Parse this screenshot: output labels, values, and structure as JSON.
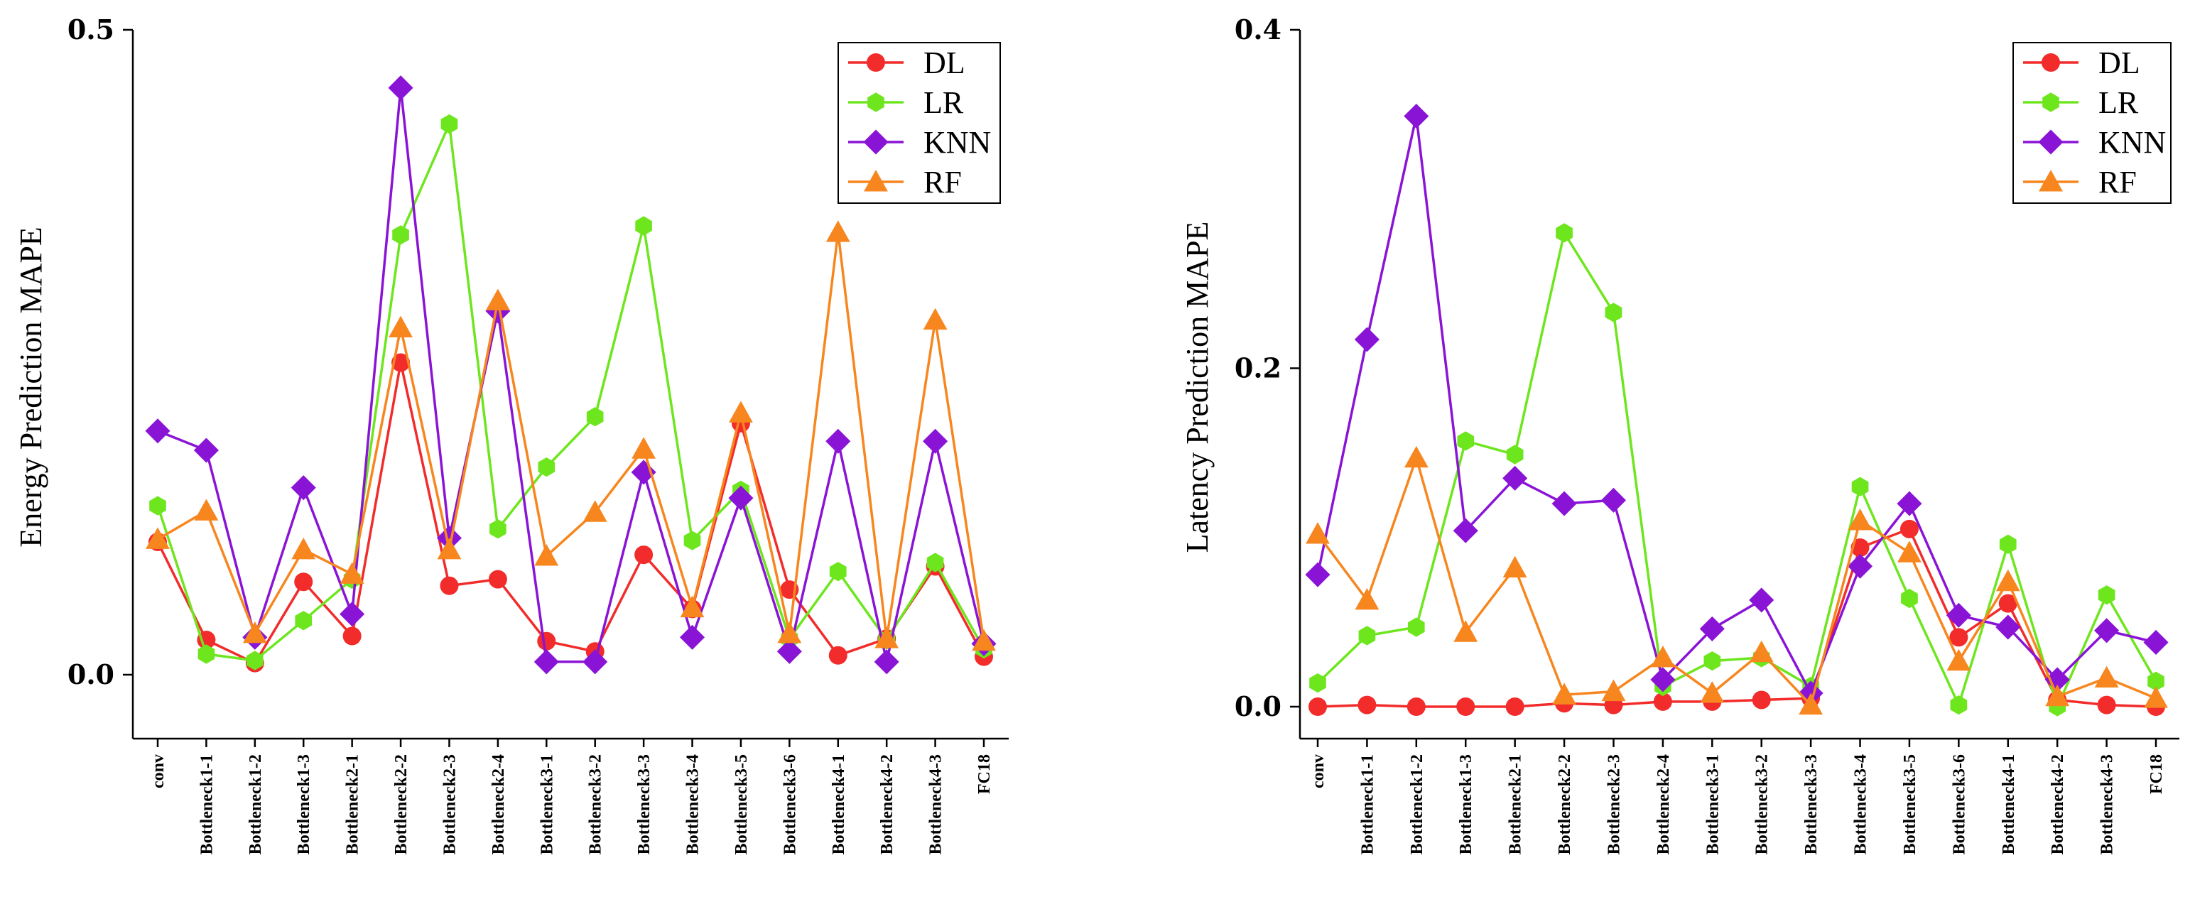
{
  "colors": {
    "DL": "#f22b2b",
    "LR": "#6ee61e",
    "KNN": "#8a14d6",
    "RF": "#f7861f"
  },
  "chart_data": [
    {
      "type": "line",
      "title": "",
      "xlabel": "",
      "ylabel": "Energy Prediction MAPE",
      "ylim": [
        -0.05,
        0.5
      ],
      "yticks": [
        "0.0",
        "0.5"
      ],
      "ytick_values": [
        0.0,
        0.5
      ],
      "categories": [
        "conv",
        "Bottleneck1-1",
        "Bottleneck1-2",
        "Bottleneck1-3",
        "Bottleneck2-1",
        "Bottleneck2-2",
        "Bottleneck2-3",
        "Bottleneck2-4",
        "Bottleneck3-1",
        "Bottleneck3-2",
        "Bottleneck3-3",
        "Bottleneck3-4",
        "Bottleneck3-5",
        "Bottleneck3-6",
        "Bottleneck4-1",
        "Bottleneck4-2",
        "Bottleneck4-3",
        "FC18"
      ],
      "legend_position": "top-right",
      "series": [
        {
          "name": "DL",
          "marker": "circle",
          "values": [
            0.103,
            0.027,
            0.009,
            0.072,
            0.03,
            0.242,
            0.069,
            0.074,
            0.026,
            0.018,
            0.093,
            0.051,
            0.195,
            0.066,
            0.015,
            0.028,
            0.084,
            0.014
          ]
        },
        {
          "name": "LR",
          "marker": "hexagon",
          "values": [
            0.131,
            0.016,
            0.011,
            0.042,
            0.074,
            0.341,
            0.427,
            0.113,
            0.161,
            0.2,
            0.348,
            0.104,
            0.143,
            0.028,
            0.08,
            0.027,
            0.087,
            0.02
          ]
        },
        {
          "name": "KNN",
          "marker": "diamond",
          "values": [
            0.189,
            0.174,
            0.029,
            0.145,
            0.047,
            0.455,
            0.106,
            0.282,
            0.01,
            0.01,
            0.157,
            0.029,
            0.137,
            0.018,
            0.181,
            0.01,
            0.181,
            0.024
          ]
        },
        {
          "name": "RF",
          "marker": "triangle",
          "values": [
            0.105,
            0.127,
            0.032,
            0.097,
            0.078,
            0.269,
            0.097,
            0.29,
            0.092,
            0.126,
            0.175,
            0.052,
            0.203,
            0.032,
            0.343,
            0.028,
            0.275,
            0.026
          ]
        }
      ]
    },
    {
      "type": "line",
      "title": "",
      "xlabel": "",
      "ylabel": "Latency Prediction MAPE",
      "ylim": [
        -0.02,
        0.4
      ],
      "yticks": [
        "0.0",
        "0.2",
        "0.4"
      ],
      "ytick_values": [
        0.0,
        0.2,
        0.4
      ],
      "categories": [
        "conv",
        "Bottleneck1-1",
        "Bottleneck1-2",
        "Bottleneck1-3",
        "Bottleneck2-1",
        "Bottleneck2-2",
        "Bottleneck2-3",
        "Bottleneck2-4",
        "Bottleneck3-1",
        "Bottleneck3-2",
        "Bottleneck3-3",
        "Bottleneck3-4",
        "Bottleneck3-5",
        "Bottleneck3-6",
        "Bottleneck4-1",
        "Bottleneck4-2",
        "Bottleneck4-3",
        "FC18"
      ],
      "legend_position": "top-right",
      "series": [
        {
          "name": "DL",
          "marker": "circle",
          "values": [
            0.0,
            0.001,
            0.0,
            0.0,
            0.0,
            0.002,
            0.001,
            0.003,
            0.003,
            0.004,
            0.005,
            0.094,
            0.105,
            0.041,
            0.061,
            0.004,
            0.001,
            0.0
          ]
        },
        {
          "name": "LR",
          "marker": "hexagon",
          "values": [
            0.014,
            0.042,
            0.047,
            0.157,
            0.149,
            0.28,
            0.233,
            0.012,
            0.027,
            0.029,
            0.012,
            0.13,
            0.064,
            0.001,
            0.096,
            0.0,
            0.066,
            0.015
          ]
        },
        {
          "name": "KNN",
          "marker": "diamond",
          "values": [
            0.078,
            0.217,
            0.349,
            0.104,
            0.135,
            0.12,
            0.122,
            0.016,
            0.046,
            0.063,
            0.008,
            0.083,
            0.12,
            0.054,
            0.047,
            0.016,
            0.045,
            0.038
          ]
        },
        {
          "name": "RF",
          "marker": "triangle",
          "values": [
            0.102,
            0.063,
            0.147,
            0.044,
            0.082,
            0.007,
            0.009,
            0.029,
            0.008,
            0.032,
            0.001,
            0.11,
            0.091,
            0.027,
            0.074,
            0.006,
            0.017,
            0.005
          ]
        }
      ]
    }
  ]
}
